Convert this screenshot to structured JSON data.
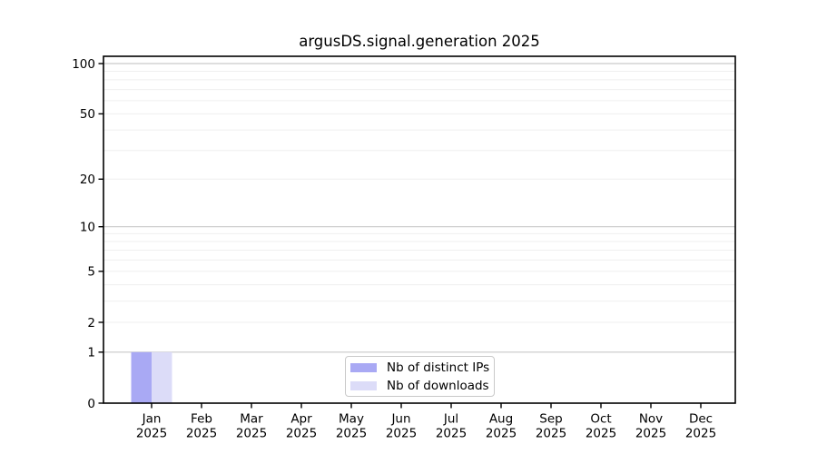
{
  "chart_data": {
    "type": "bar",
    "title": "argusDS.signal.generation 2025",
    "categories": [
      "Jan",
      "Feb",
      "Mar",
      "Apr",
      "May",
      "Jun",
      "Jul",
      "Aug",
      "Sep",
      "Oct",
      "Nov",
      "Dec"
    ],
    "x_year_label": "2025",
    "series": [
      {
        "name": "Nb of distinct IPs",
        "color": "#a9a9f4",
        "values": [
          1,
          0,
          0,
          0,
          0,
          0,
          0,
          0,
          0,
          0,
          0,
          0
        ]
      },
      {
        "name": "Nb of downloads",
        "color": "#dcdcf8",
        "values": [
          1,
          0,
          0,
          0,
          0,
          0,
          0,
          0,
          0,
          0,
          0,
          0
        ]
      }
    ],
    "xlabel": "",
    "ylabel": "",
    "yscale": "log1p",
    "ylim": [
      0,
      110.5
    ],
    "yticks": [
      0,
      1,
      2,
      5,
      10,
      20,
      50,
      100
    ],
    "ytick_labels": [
      "0",
      "1",
      "2",
      "5",
      "10",
      "20",
      "50",
      "100"
    ],
    "major_grid_values": [
      1,
      10,
      100
    ],
    "minor_grid_values": [
      2,
      3,
      4,
      5,
      6,
      7,
      8,
      9,
      20,
      30,
      40,
      50,
      60,
      70,
      80,
      90
    ],
    "grid": true,
    "legend_position": "bottom-center",
    "colors": {
      "axis": "#000000",
      "text": "#000000",
      "major_grid": "#c9c9c9",
      "minor_grid": "#efefef",
      "background": "#ffffff",
      "legend_border": "#c9c9c9"
    }
  }
}
